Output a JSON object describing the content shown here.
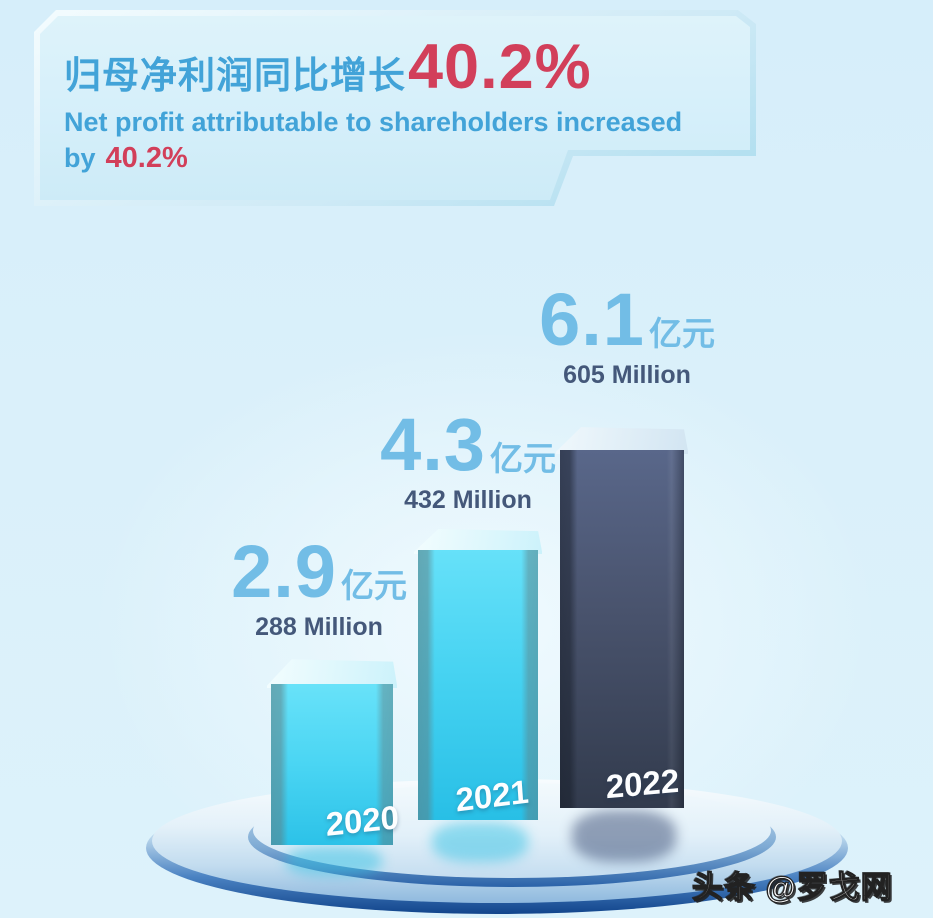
{
  "banner": {
    "title_zh": "归母净利润同比增长",
    "title_pct": "40.2%",
    "subtitle_line": "Net profit attributable to shareholders increased",
    "subtitle_prefix": "by",
    "subtitle_pct": "40.2%"
  },
  "chart_data": {
    "type": "bar",
    "title_zh": "归母净利润同比增长40.2%",
    "title_en": "Net profit attributable to shareholders increased by 40.2%",
    "categories": [
      "2020",
      "2021",
      "2022"
    ],
    "series": [
      {
        "name": "归母净利润 (亿元)",
        "values": [
          2.9,
          4.3,
          6.1
        ]
      },
      {
        "name": "Net profit (Million)",
        "values": [
          288,
          432,
          605
        ]
      }
    ],
    "growth_yoy": "40.2%",
    "legend_position": "none",
    "grid": false,
    "bar_colors": [
      "#45d2f1",
      "#45d2f1",
      "#434f69"
    ],
    "labels": [
      {
        "year": "2020",
        "value": "2.9",
        "unit": "亿元",
        "million": "288 Million"
      },
      {
        "year": "2021",
        "value": "4.3",
        "unit": "亿元",
        "million": "432 Million"
      },
      {
        "year": "2022",
        "value": "6.1",
        "unit": "亿元",
        "million": "605 Million"
      }
    ]
  },
  "colors": {
    "background": "#daf0fa",
    "title_blue": "#42a3d8",
    "highlight_red": "#d23f5a",
    "value_blue": "#72bde6",
    "million_navy": "#44587a",
    "bar_cyan": "#45d2f1",
    "bar_dark": "#434f69"
  },
  "watermark": {
    "text": "头条 @罗戈网"
  }
}
